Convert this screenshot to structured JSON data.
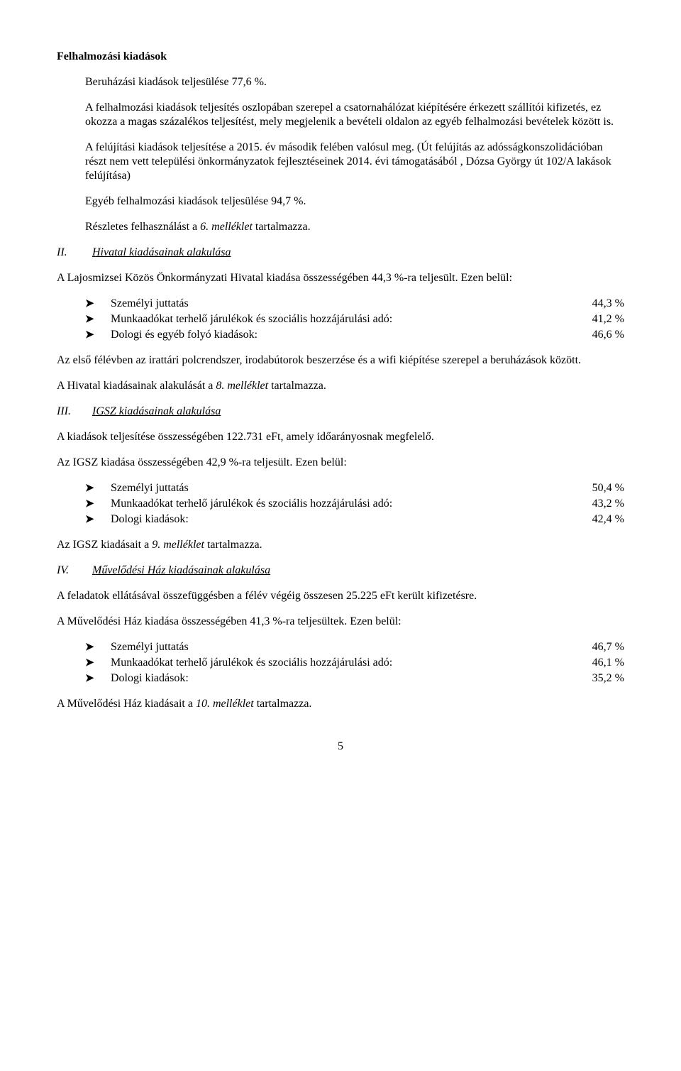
{
  "title": "Felhalmozási kiadások",
  "p_beruhazasi": "Beruházási kiadások teljesülése 77,6 %.",
  "p_felhal1": "A felhalmozási kiadások teljesítés oszlopában szerepel a csatornahálózat kiépítésére érkezett szállítói kifizetés, ez okozza a magas százalékos teljesítést, mely megjelenik a bevételi oldalon az egyéb felhalmozási bevételek között is.",
  "p_felujitasi": "A felújítási kiadások teljesítése a 2015. év második felében valósul meg. (Út felújítás az adósságkonszolidációban részt nem vett települési önkormányzatok fejlesztéseinek 2014. évi támogatásából , Dózsa György út 102/A lakások felújítása)",
  "p_egyeb_felhal": "Egyéb felhalmozási kiadások teljesülése 94,7 %.",
  "p_reszletes": {
    "pre": "Részletes felhasználást a ",
    "em": "6. melléklet",
    "post": " tartalmazza."
  },
  "sec_ii": {
    "num": "II.",
    "label": "Hivatal kiadásainak alakulása"
  },
  "p_hivatal_intro": "A Lajosmizsei Közös Önkormányzati Hivatal kiadása összességében 44,3 %-ra teljesült. Ezen belül:",
  "hivatal_list": [
    {
      "label": "Személyi juttatás",
      "val": "44,3 %"
    },
    {
      "label": "Munkaadókat terhelő járulékok és szociális hozzájárulási adó:",
      "val": "41,2 %"
    },
    {
      "label": "Dologi és egyéb folyó kiadások:",
      "val": "46,6 %"
    }
  ],
  "p_hivatal_wifi": "Az első félévben az irattári polcrendszer, irodabútorok beszerzése és a wifi kiépítése szerepel a beruházások között.",
  "p_hivatal_mell": {
    "pre": "A Hivatal kiadásainak alakulását a ",
    "em": "8. melléklet",
    "post": " tartalmazza."
  },
  "sec_iii": {
    "num": "III.",
    "label": "IGSZ kiadásainak alakulása"
  },
  "p_igsz_total": "A kiadások teljesítése összességében 122.731 eFt, amely időarányosnak megfelelő.",
  "p_igsz_intro": "Az IGSZ kiadása összességében 42,9 %-ra teljesült. Ezen belül:",
  "igsz_list": [
    {
      "label": "Személyi juttatás",
      "val": "50,4 %"
    },
    {
      "label": "Munkaadókat terhelő járulékok és szociális hozzájárulási adó:",
      "val": "43,2 %"
    },
    {
      "label": "Dologi kiadások:",
      "val": "42,4 %"
    }
  ],
  "p_igsz_mell": {
    "pre": "Az IGSZ kiadásait a ",
    "em": "9. melléklet",
    "post": " tartalmazza."
  },
  "sec_iv": {
    "num": "IV.",
    "label": "Művelődési Ház kiadásainak alakulása"
  },
  "p_muv_total": "A feladatok ellátásával összefüggésben a félév végéig összesen 25.225 eFt került kifizetésre.",
  "p_muv_intro": "A Művelődési Ház kiadása összességében 41,3 %-ra teljesültek. Ezen belül:",
  "muv_list": [
    {
      "label": "Személyi juttatás",
      "val": "46,7 %"
    },
    {
      "label": "Munkaadókat terhelő járulékok és szociális hozzájárulási adó:",
      "val": "46,1 %"
    },
    {
      "label": "Dologi kiadások:",
      "val": "35,2 %"
    }
  ],
  "p_muv_mell": {
    "pre": "A Művelődési Ház kiadásait a ",
    "em": "10. melléklet",
    "post": " tartalmazza."
  },
  "page_number": "5",
  "arrow_glyph": "➤"
}
